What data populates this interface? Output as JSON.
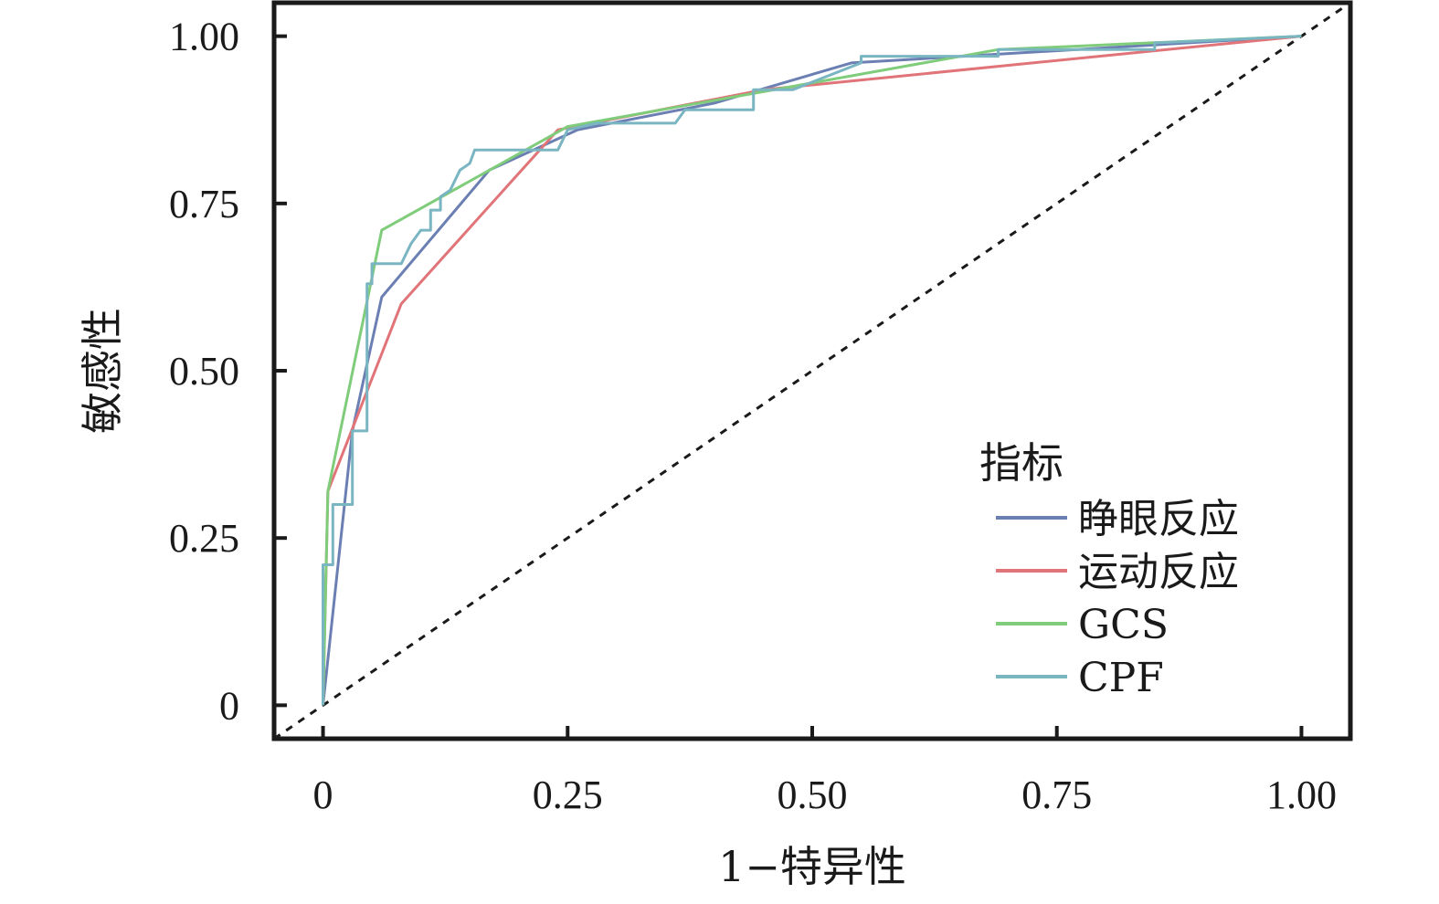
{
  "chart_data": {
    "type": "line",
    "xlabel": "1−特异性",
    "ylabel": "敏感性",
    "xlim": [
      -0.05,
      1.05
    ],
    "ylim": [
      -0.05,
      1.05
    ],
    "x_ticks": [
      0,
      0.25,
      0.5,
      0.75,
      1.0
    ],
    "x_tick_labels": [
      "0",
      "0.25",
      "0.50",
      "0.75",
      "1.00"
    ],
    "y_ticks": [
      0,
      0.25,
      0.5,
      0.75,
      1.0
    ],
    "y_tick_labels": [
      "0",
      "0.25",
      "0.50",
      "0.75",
      "1.00"
    ],
    "grid": false,
    "legend": {
      "title": "指标",
      "position": "bottom-right"
    },
    "reference_line": {
      "style": "dashed",
      "color": "#1a1a1a",
      "points": [
        [
          -0.05,
          -0.05
        ],
        [
          1.05,
          1.05
        ]
      ]
    },
    "series": [
      {
        "name": "睁眼反应",
        "color": "#6b7fb3",
        "points": [
          [
            0,
            0
          ],
          [
            0.03,
            0.41
          ],
          [
            0.06,
            0.61
          ],
          [
            0.17,
            0.8
          ],
          [
            0.26,
            0.86
          ],
          [
            0.4,
            0.9
          ],
          [
            0.54,
            0.96
          ],
          [
            1.0,
            1.0
          ]
        ]
      },
      {
        "name": "运动反应",
        "color": "#e07478",
        "points": [
          [
            0,
            0
          ],
          [
            0.005,
            0.32
          ],
          [
            0.08,
            0.6
          ],
          [
            0.24,
            0.86
          ],
          [
            0.45,
            0.92
          ],
          [
            1.0,
            1.0
          ]
        ]
      },
      {
        "name": "GCS",
        "color": "#7fcc7a",
        "points": [
          [
            0,
            0
          ],
          [
            0.005,
            0.32
          ],
          [
            0.06,
            0.71
          ],
          [
            0.25,
            0.865
          ],
          [
            0.48,
            0.925
          ],
          [
            0.69,
            0.98
          ],
          [
            1.0,
            1.0
          ]
        ]
      },
      {
        "name": "CPF",
        "color": "#7ab5c2",
        "points": [
          [
            0,
            0
          ],
          [
            0,
            0.21
          ],
          [
            0.01,
            0.21
          ],
          [
            0.01,
            0.3
          ],
          [
            0.03,
            0.3
          ],
          [
            0.03,
            0.41
          ],
          [
            0.045,
            0.41
          ],
          [
            0.045,
            0.63
          ],
          [
            0.05,
            0.63
          ],
          [
            0.05,
            0.66
          ],
          [
            0.08,
            0.66
          ],
          [
            0.09,
            0.69
          ],
          [
            0.1,
            0.71
          ],
          [
            0.11,
            0.71
          ],
          [
            0.11,
            0.74
          ],
          [
            0.12,
            0.74
          ],
          [
            0.12,
            0.76
          ],
          [
            0.13,
            0.77
          ],
          [
            0.14,
            0.8
          ],
          [
            0.15,
            0.81
          ],
          [
            0.155,
            0.83
          ],
          [
            0.24,
            0.83
          ],
          [
            0.25,
            0.86
          ],
          [
            0.28,
            0.87
          ],
          [
            0.36,
            0.87
          ],
          [
            0.37,
            0.89
          ],
          [
            0.44,
            0.89
          ],
          [
            0.44,
            0.92
          ],
          [
            0.48,
            0.92
          ],
          [
            0.55,
            0.96
          ],
          [
            0.55,
            0.97
          ],
          [
            0.69,
            0.97
          ],
          [
            0.69,
            0.98
          ],
          [
            0.85,
            0.98
          ],
          [
            0.85,
            0.99
          ],
          [
            1.0,
            1.0
          ]
        ]
      }
    ]
  }
}
